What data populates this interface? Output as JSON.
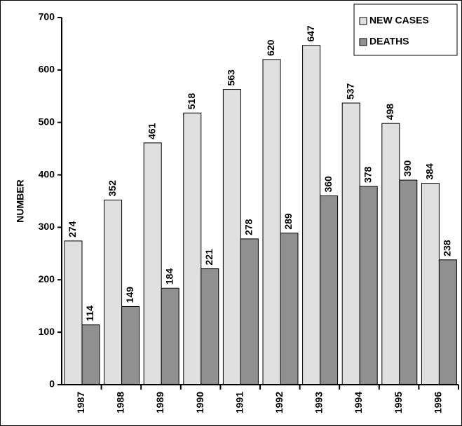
{
  "chart_data": {
    "type": "bar",
    "y_label": "NUMBER",
    "categories": [
      "1987",
      "1988",
      "1989",
      "1990",
      "1991",
      "1992",
      "1993",
      "1994",
      "1995",
      "1996"
    ],
    "series": [
      {
        "name": "NEW CASES",
        "color": "#e0e0e0",
        "values": [
          274,
          352,
          461,
          518,
          563,
          620,
          647,
          537,
          498,
          384
        ]
      },
      {
        "name": "DEATHS",
        "color": "#909090",
        "values": [
          114,
          149,
          184,
          221,
          278,
          289,
          360,
          378,
          390,
          238
        ]
      }
    ],
    "ylim": [
      0,
      700
    ],
    "yticks": [
      0,
      100,
      200,
      300,
      400,
      500,
      600,
      700
    ],
    "legend": "top-right",
    "grid": false
  }
}
